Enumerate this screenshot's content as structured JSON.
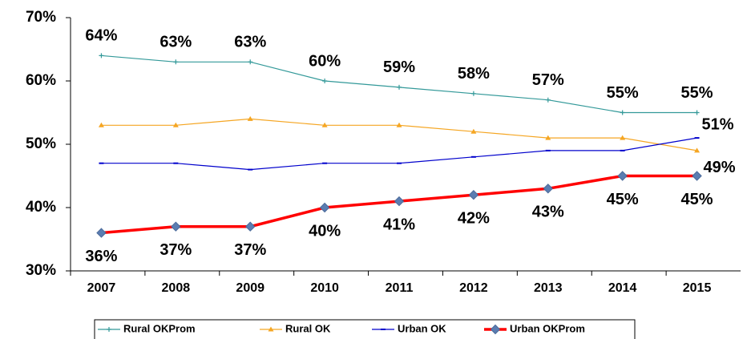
{
  "chart_data": {
    "type": "line",
    "categories": [
      "2007",
      "2008",
      "2009",
      "2010",
      "2011",
      "2012",
      "2013",
      "2014",
      "2015"
    ],
    "series": [
      {
        "name": "Rural OKProm",
        "color": "#339999",
        "values": [
          64,
          63,
          63,
          60,
          59,
          58,
          57,
          55,
          55
        ],
        "value_labels": [
          "64%",
          "63%",
          "63%",
          "60%",
          "59%",
          "58%",
          "57%",
          "55%",
          "55%"
        ]
      },
      {
        "name": "Rural OK",
        "color": "#F5A623",
        "values": [
          53,
          53,
          54,
          53,
          53,
          52,
          51,
          51,
          49
        ],
        "value_labels": [
          null,
          null,
          null,
          null,
          null,
          null,
          null,
          null,
          "49%"
        ]
      },
      {
        "name": "Urban OK",
        "color": "#0000CC",
        "values": [
          47,
          47,
          46,
          47,
          47,
          48,
          49,
          49,
          51
        ],
        "value_labels": [
          null,
          null,
          null,
          null,
          null,
          null,
          null,
          null,
          "51%"
        ]
      },
      {
        "name": "Urban OKProm",
        "color": "#FF0000",
        "values": [
          36,
          37,
          37,
          40,
          41,
          42,
          43,
          45,
          45
        ],
        "value_labels": [
          "36%",
          "37%",
          "37%",
          "40%",
          "41%",
          "42%",
          "43%",
          "45%",
          "45%"
        ]
      }
    ],
    "ylim": [
      30,
      70
    ],
    "yticks": [
      {
        "value": 30,
        "label": "30%"
      },
      {
        "value": 40,
        "label": "40%"
      },
      {
        "value": 50,
        "label": "50%"
      },
      {
        "value": 60,
        "label": "60%"
      },
      {
        "value": 70,
        "label": "70%"
      }
    ],
    "legend": "bottom"
  }
}
